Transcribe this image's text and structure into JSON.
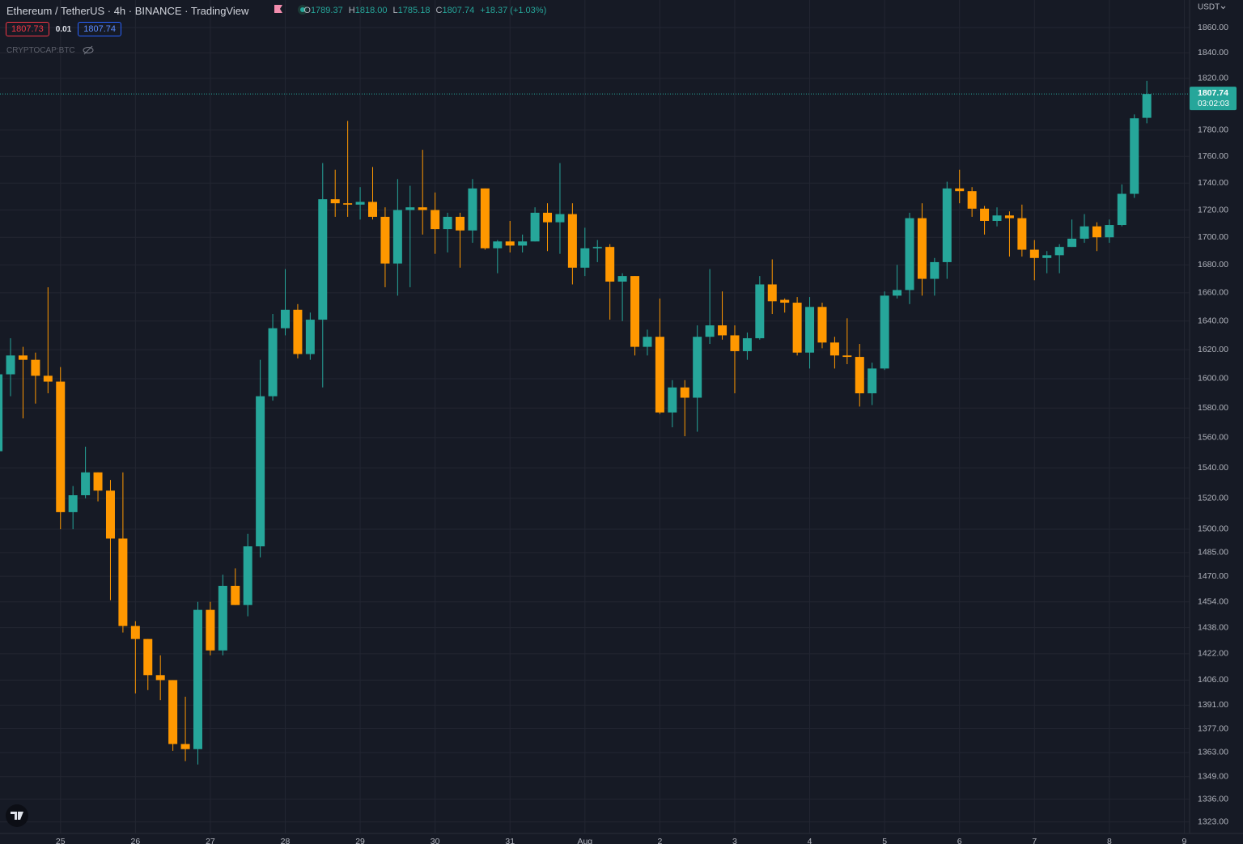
{
  "chart_data": {
    "type": "candlestick",
    "title": "Ethereum / TetherUS · 4h · BINANCE · TradingView",
    "ohlc_letters": [
      "O",
      "H",
      "L",
      "C"
    ],
    "last_high_label": "1818.00",
    "change_label": "+18.37 (+1.03%)",
    "bid": "1807.73",
    "spread": "0.01",
    "ask": "1807.74",
    "indicator": "CRYPTOCAP:BTC",
    "currency": "USDT",
    "countdown": "03:02:03",
    "up_color": "#26a69a",
    "down_color": "#ff9800",
    "log_scale": true,
    "grid": true,
    "ylim": [
      1316.5,
      1882.1
    ],
    "yticks": [
      {
        "value": 1860,
        "label": "1860.00"
      },
      {
        "value": 1840,
        "label": "1840.00"
      },
      {
        "value": 1820,
        "label": "1820.00"
      },
      {
        "value": 1780,
        "label": "1780.00"
      },
      {
        "value": 1760,
        "label": "1760.00"
      },
      {
        "value": 1740,
        "label": "1740.00"
      },
      {
        "value": 1720,
        "label": "1720.00"
      },
      {
        "value": 1700,
        "label": "1700.00"
      },
      {
        "value": 1680,
        "label": "1680.00"
      },
      {
        "value": 1660,
        "label": "1660.00"
      },
      {
        "value": 1640,
        "label": "1640.00"
      },
      {
        "value": 1620,
        "label": "1620.00"
      },
      {
        "value": 1600,
        "label": "1600.00"
      },
      {
        "value": 1580,
        "label": "1580.00"
      },
      {
        "value": 1560,
        "label": "1560.00"
      },
      {
        "value": 1540,
        "label": "1540.00"
      },
      {
        "value": 1520,
        "label": "1520.00"
      },
      {
        "value": 1500,
        "label": "1500.00"
      },
      {
        "value": 1485,
        "label": "1485.00"
      },
      {
        "value": 1470,
        "label": "1470.00"
      },
      {
        "value": 1454,
        "label": "1454.00"
      },
      {
        "value": 1438,
        "label": "1438.00"
      },
      {
        "value": 1422,
        "label": "1422.00"
      },
      {
        "value": 1406,
        "label": "1406.00"
      },
      {
        "value": 1391,
        "label": "1391.00"
      },
      {
        "value": 1377,
        "label": "1377.00"
      },
      {
        "value": 1363,
        "label": "1363.00"
      },
      {
        "value": 1349,
        "label": "1349.00"
      },
      {
        "value": 1336,
        "label": "1336.00"
      },
      {
        "value": 1323,
        "label": "1323.00"
      }
    ],
    "xticks": [
      {
        "value": 5,
        "label": "25"
      },
      {
        "value": 11,
        "label": "26"
      },
      {
        "value": 17,
        "label": "27"
      },
      {
        "value": 23,
        "label": "28"
      },
      {
        "value": 29,
        "label": "29"
      },
      {
        "value": 35,
        "label": "30"
      },
      {
        "value": 41,
        "label": "31"
      },
      {
        "value": 47,
        "label": "Aug"
      },
      {
        "value": 53,
        "label": "2"
      },
      {
        "value": 59,
        "label": "3"
      },
      {
        "value": 65,
        "label": "4"
      },
      {
        "value": 71,
        "label": "5"
      },
      {
        "value": 77,
        "label": "6"
      },
      {
        "value": 83,
        "label": "7"
      },
      {
        "value": 89,
        "label": "8"
      },
      {
        "value": 95,
        "label": "9"
      }
    ],
    "candles": [
      {
        "open": 1551,
        "high": 1606,
        "low": 1545,
        "close": 1603
      },
      {
        "open": 1603,
        "high": 1628,
        "low": 1588,
        "close": 1616
      },
      {
        "open": 1616,
        "high": 1622,
        "low": 1573,
        "close": 1613
      },
      {
        "open": 1613,
        "high": 1618,
        "low": 1583,
        "close": 1602
      },
      {
        "open": 1602,
        "high": 1664,
        "low": 1590,
        "close": 1598
      },
      {
        "open": 1598,
        "high": 1608,
        "low": 1500,
        "close": 1511
      },
      {
        "open": 1511,
        "high": 1528,
        "low": 1500,
        "close": 1522
      },
      {
        "open": 1522,
        "high": 1554,
        "low": 1520,
        "close": 1537
      },
      {
        "open": 1537,
        "high": 1537,
        "low": 1518,
        "close": 1525
      },
      {
        "open": 1525,
        "high": 1532,
        "low": 1455,
        "close": 1494
      },
      {
        "open": 1494,
        "high": 1537,
        "low": 1435,
        "close": 1439
      },
      {
        "open": 1439,
        "high": 1442,
        "low": 1398,
        "close": 1431
      },
      {
        "open": 1431,
        "high": 1431,
        "low": 1400,
        "close": 1409
      },
      {
        "open": 1409,
        "high": 1421,
        "low": 1394,
        "close": 1406
      },
      {
        "open": 1406,
        "high": 1406,
        "low": 1364,
        "close": 1368
      },
      {
        "open": 1368,
        "high": 1396,
        "low": 1358,
        "close": 1365
      },
      {
        "open": 1365,
        "high": 1454,
        "low": 1356,
        "close": 1449
      },
      {
        "open": 1449,
        "high": 1454,
        "low": 1421,
        "close": 1424
      },
      {
        "open": 1424,
        "high": 1471,
        "low": 1421,
        "close": 1464
      },
      {
        "open": 1464,
        "high": 1475,
        "low": 1452,
        "close": 1452
      },
      {
        "open": 1452,
        "high": 1497,
        "low": 1445,
        "close": 1489
      },
      {
        "open": 1489,
        "high": 1613,
        "low": 1482,
        "close": 1588
      },
      {
        "open": 1588,
        "high": 1645,
        "low": 1585,
        "close": 1635
      },
      {
        "open": 1635,
        "high": 1677,
        "low": 1630,
        "close": 1648
      },
      {
        "open": 1648,
        "high": 1652,
        "low": 1614,
        "close": 1617
      },
      {
        "open": 1617,
        "high": 1646,
        "low": 1613,
        "close": 1641
      },
      {
        "open": 1641,
        "high": 1755,
        "low": 1594,
        "close": 1728
      },
      {
        "open": 1728,
        "high": 1750,
        "low": 1715,
        "close": 1725
      },
      {
        "open": 1725,
        "high": 1787,
        "low": 1715,
        "close": 1724
      },
      {
        "open": 1724,
        "high": 1737,
        "low": 1713,
        "close": 1726
      },
      {
        "open": 1726,
        "high": 1752,
        "low": 1713,
        "close": 1715
      },
      {
        "open": 1715,
        "high": 1722,
        "low": 1664,
        "close": 1681
      },
      {
        "open": 1681,
        "high": 1743,
        "low": 1658,
        "close": 1720
      },
      {
        "open": 1720,
        "high": 1738,
        "low": 1664,
        "close": 1722
      },
      {
        "open": 1722,
        "high": 1765,
        "low": 1702,
        "close": 1720
      },
      {
        "open": 1720,
        "high": 1733,
        "low": 1688,
        "close": 1706
      },
      {
        "open": 1706,
        "high": 1718,
        "low": 1689,
        "close": 1715
      },
      {
        "open": 1715,
        "high": 1718,
        "low": 1678,
        "close": 1705
      },
      {
        "open": 1705,
        "high": 1743,
        "low": 1696,
        "close": 1736
      },
      {
        "open": 1736,
        "high": 1736,
        "low": 1691,
        "close": 1692
      },
      {
        "open": 1692,
        "high": 1698,
        "low": 1674,
        "close": 1697
      },
      {
        "open": 1697,
        "high": 1712,
        "low": 1689,
        "close": 1694
      },
      {
        "open": 1694,
        "high": 1702,
        "low": 1689,
        "close": 1697
      },
      {
        "open": 1697,
        "high": 1722,
        "low": 1697,
        "close": 1718
      },
      {
        "open": 1718,
        "high": 1725,
        "low": 1690,
        "close": 1711
      },
      {
        "open": 1711,
        "high": 1755,
        "low": 1688,
        "close": 1717
      },
      {
        "open": 1717,
        "high": 1725,
        "low": 1666,
        "close": 1678
      },
      {
        "open": 1678,
        "high": 1707,
        "low": 1672,
        "close": 1692
      },
      {
        "open": 1692,
        "high": 1698,
        "low": 1682,
        "close": 1693
      },
      {
        "open": 1693,
        "high": 1695,
        "low": 1641,
        "close": 1668
      },
      {
        "open": 1668,
        "high": 1674,
        "low": 1640,
        "close": 1672
      },
      {
        "open": 1672,
        "high": 1672,
        "low": 1616,
        "close": 1622
      },
      {
        "open": 1622,
        "high": 1634,
        "low": 1616,
        "close": 1629
      },
      {
        "open": 1629,
        "high": 1656,
        "low": 1576,
        "close": 1577
      },
      {
        "open": 1577,
        "high": 1599,
        "low": 1567,
        "close": 1594
      },
      {
        "open": 1594,
        "high": 1599,
        "low": 1561,
        "close": 1587
      },
      {
        "open": 1587,
        "high": 1637,
        "low": 1564,
        "close": 1629
      },
      {
        "open": 1629,
        "high": 1677,
        "low": 1624,
        "close": 1637
      },
      {
        "open": 1637,
        "high": 1661,
        "low": 1627,
        "close": 1630
      },
      {
        "open": 1630,
        "high": 1637,
        "low": 1590,
        "close": 1619
      },
      {
        "open": 1619,
        "high": 1632,
        "low": 1613,
        "close": 1628
      },
      {
        "open": 1628,
        "high": 1672,
        "low": 1627,
        "close": 1666
      },
      {
        "open": 1666,
        "high": 1684,
        "low": 1645,
        "close": 1654
      },
      {
        "open": 1655,
        "high": 1656,
        "low": 1646,
        "close": 1653
      },
      {
        "open": 1653,
        "high": 1657,
        "low": 1616,
        "close": 1618
      },
      {
        "open": 1618,
        "high": 1657,
        "low": 1607,
        "close": 1650
      },
      {
        "open": 1650,
        "high": 1653,
        "low": 1621,
        "close": 1625
      },
      {
        "open": 1625,
        "high": 1629,
        "low": 1607,
        "close": 1616
      },
      {
        "open": 1616,
        "high": 1642,
        "low": 1610,
        "close": 1615
      },
      {
        "open": 1615,
        "high": 1624,
        "low": 1581,
        "close": 1590
      },
      {
        "open": 1590,
        "high": 1611,
        "low": 1582,
        "close": 1607
      },
      {
        "open": 1607,
        "high": 1661,
        "low": 1606,
        "close": 1658
      },
      {
        "open": 1658,
        "high": 1680,
        "low": 1656,
        "close": 1662
      },
      {
        "open": 1662,
        "high": 1718,
        "low": 1652,
        "close": 1714
      },
      {
        "open": 1714,
        "high": 1725,
        "low": 1658,
        "close": 1670
      },
      {
        "open": 1670,
        "high": 1685,
        "low": 1658,
        "close": 1682
      },
      {
        "open": 1682,
        "high": 1741,
        "low": 1670,
        "close": 1736
      },
      {
        "open": 1736,
        "high": 1750,
        "low": 1725,
        "close": 1734
      },
      {
        "open": 1734,
        "high": 1737,
        "low": 1715,
        "close": 1721
      },
      {
        "open": 1721,
        "high": 1723,
        "low": 1702,
        "close": 1712
      },
      {
        "open": 1712,
        "high": 1722,
        "low": 1708,
        "close": 1716
      },
      {
        "open": 1716,
        "high": 1719,
        "low": 1686,
        "close": 1714
      },
      {
        "open": 1714,
        "high": 1724,
        "low": 1686,
        "close": 1691
      },
      {
        "open": 1691,
        "high": 1698,
        "low": 1669,
        "close": 1685
      },
      {
        "open": 1685,
        "high": 1690,
        "low": 1674,
        "close": 1687
      },
      {
        "open": 1687,
        "high": 1695,
        "low": 1674,
        "close": 1693
      },
      {
        "open": 1693,
        "high": 1713,
        "low": 1693,
        "close": 1699
      },
      {
        "open": 1699,
        "high": 1717,
        "low": 1696,
        "close": 1708
      },
      {
        "open": 1708,
        "high": 1711,
        "low": 1690,
        "close": 1700
      },
      {
        "open": 1700,
        "high": 1713,
        "low": 1696,
        "close": 1709
      },
      {
        "open": 1709,
        "high": 1739,
        "low": 1708,
        "close": 1732
      },
      {
        "open": 1732,
        "high": 1792,
        "low": 1729,
        "close": 1789
      },
      {
        "open": 1789.37,
        "high": 1818,
        "low": 1785.18,
        "close": 1807.74
      }
    ]
  }
}
